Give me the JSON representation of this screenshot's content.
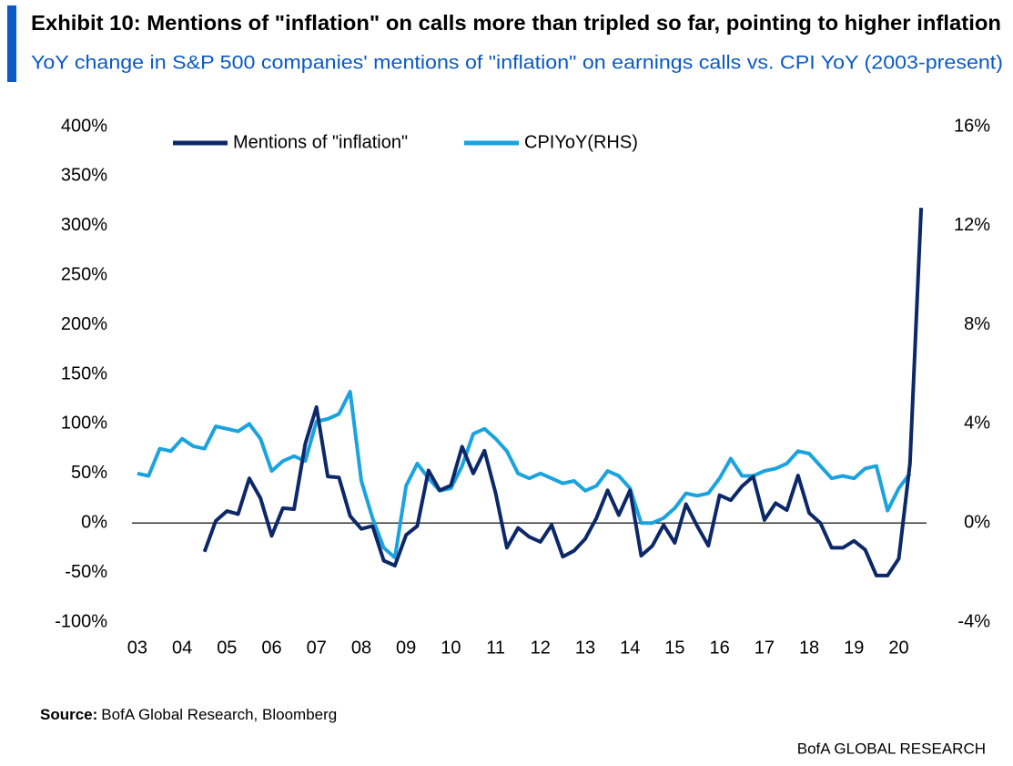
{
  "chart_data": {
    "type": "line",
    "title": "Exhibit 10: Mentions of \"inflation\" on calls more than tripled so far, pointing to higher inflation",
    "subtitle": "YoY change in S&P 500 companies' mentions of \"inflation\" on earnings calls vs. CPI YoY (2003-present)",
    "legend": "top",
    "series": [
      {
        "name": "Mentions of \"inflation\"",
        "color": "#0c2869",
        "x": [
          2004.5,
          2004.75,
          2005,
          2005.25,
          2005.5,
          2005.75,
          2006,
          2006.25,
          2006.5,
          2006.75,
          2007,
          2007.25,
          2007.5,
          2007.75,
          2008,
          2008.25,
          2008.5,
          2008.75,
          2009,
          2009.25,
          2009.5,
          2009.75,
          2010,
          2010.25,
          2010.5,
          2010.75,
          2011,
          2011.25,
          2011.5,
          2011.75,
          2012,
          2012.25,
          2012.5,
          2012.75,
          2013,
          2013.25,
          2013.5,
          2013.75,
          2014,
          2014.25,
          2014.5,
          2014.75,
          2015,
          2015.25,
          2015.5,
          2015.75,
          2016,
          2016.25,
          2016.5,
          2016.75,
          2017,
          2017.25,
          2017.5,
          2017.75,
          2018,
          2018.25,
          2018.5,
          2018.75,
          2019,
          2019.25,
          2019.5,
          2019.75,
          2020,
          2020.25,
          2020.5
        ],
        "values": [
          -29,
          2,
          12,
          9,
          45,
          25,
          -13,
          15,
          14,
          80,
          117,
          47,
          46,
          7,
          -6,
          -3,
          -38,
          -43,
          -12,
          -3,
          53,
          33,
          38,
          77,
          50,
          73,
          30,
          -25,
          -5,
          -14,
          -19,
          -2,
          -34,
          -28,
          -16,
          5,
          33,
          8,
          33,
          -33,
          -23,
          -2,
          -20,
          19,
          -3,
          -23,
          28,
          23,
          37,
          47,
          3,
          20,
          13,
          48,
          10,
          0,
          -25,
          -25,
          -18,
          -27,
          -53,
          -53,
          -36,
          60,
          318
        ]
      },
      {
        "name": "CPIYoY(RHS)",
        "color": "#1aa3df",
        "axis": "y2",
        "x": [
          2003,
          2003.25,
          2003.5,
          2003.75,
          2004,
          2004.25,
          2004.5,
          2004.75,
          2005,
          2005.25,
          2005.5,
          2005.75,
          2006,
          2006.25,
          2006.5,
          2006.75,
          2007,
          2007.25,
          2007.5,
          2007.75,
          2008,
          2008.25,
          2008.5,
          2008.75,
          2009,
          2009.25,
          2009.5,
          2009.75,
          2010,
          2010.25,
          2010.5,
          2010.75,
          2011,
          2011.25,
          2011.5,
          2011.75,
          2012,
          2012.25,
          2012.5,
          2012.75,
          2013,
          2013.25,
          2013.5,
          2013.75,
          2014,
          2014.25,
          2014.5,
          2014.75,
          2015,
          2015.25,
          2015.5,
          2015.75,
          2016,
          2016.25,
          2016.5,
          2016.75,
          2017,
          2017.25,
          2017.5,
          2017.75,
          2018,
          2018.25,
          2018.5,
          2018.75,
          2019,
          2019.25,
          2019.5,
          2019.75,
          2020,
          2020.25
        ],
        "values": [
          2.0,
          1.9,
          3.0,
          2.9,
          3.4,
          3.1,
          3.0,
          3.9,
          3.8,
          3.7,
          4.0,
          3.4,
          2.1,
          2.5,
          2.7,
          2.5,
          4.1,
          4.2,
          4.4,
          5.3,
          1.7,
          0.2,
          -1.0,
          -1.4,
          1.5,
          2.4,
          1.8,
          1.3,
          1.4,
          2.3,
          3.6,
          3.8,
          3.4,
          2.9,
          2.0,
          1.8,
          2.0,
          1.8,
          1.6,
          1.7,
          1.3,
          1.5,
          2.1,
          1.9,
          1.4,
          0.0,
          0.0,
          0.2,
          0.6,
          1.2,
          1.1,
          1.2,
          1.8,
          2.6,
          1.9,
          1.9,
          2.1,
          2.2,
          2.4,
          2.9,
          2.8,
          2.3,
          1.8,
          1.9,
          1.8,
          2.2,
          2.3,
          0.5,
          1.4,
          2.0
        ]
      }
    ],
    "xlim": [
      2002.88,
      2020.62
    ],
    "xticks": [
      {
        "value": 2003,
        "label": "03"
      },
      {
        "value": 2004,
        "label": "04"
      },
      {
        "value": 2005,
        "label": "05"
      },
      {
        "value": 2006,
        "label": "06"
      },
      {
        "value": 2007,
        "label": "07"
      },
      {
        "value": 2008,
        "label": "08"
      },
      {
        "value": 2009,
        "label": "09"
      },
      {
        "value": 2010,
        "label": "10"
      },
      {
        "value": 2011,
        "label": "11"
      },
      {
        "value": 2012,
        "label": "12"
      },
      {
        "value": 2013,
        "label": "13"
      },
      {
        "value": 2014,
        "label": "14"
      },
      {
        "value": 2015,
        "label": "15"
      },
      {
        "value": 2016,
        "label": "16"
      },
      {
        "value": 2017,
        "label": "17"
      },
      {
        "value": 2018,
        "label": "18"
      },
      {
        "value": 2019,
        "label": "19"
      },
      {
        "value": 2020,
        "label": "20"
      }
    ],
    "ylim": [
      -100,
      400
    ],
    "yticks": [
      {
        "value": -100,
        "label": "-100%"
      },
      {
        "value": -50,
        "label": "-50%"
      },
      {
        "value": 0,
        "label": "0%"
      },
      {
        "value": 50,
        "label": "50%"
      },
      {
        "value": 100,
        "label": "100%"
      },
      {
        "value": 150,
        "label": "150%"
      },
      {
        "value": 200,
        "label": "200%"
      },
      {
        "value": 250,
        "label": "250%"
      },
      {
        "value": 300,
        "label": "300%"
      },
      {
        "value": 350,
        "label": "350%"
      },
      {
        "value": 400,
        "label": "400%"
      }
    ],
    "y2lim": [
      -4,
      16
    ],
    "y2ticks": [
      {
        "value": -4,
        "label": "-4%"
      },
      {
        "value": 0,
        "label": "0%"
      },
      {
        "value": 4,
        "label": "4%"
      },
      {
        "value": 8,
        "label": "8%"
      },
      {
        "value": 12,
        "label": "12%"
      },
      {
        "value": 16,
        "label": "16%"
      }
    ],
    "grid": false
  },
  "source": {
    "label": "Source:",
    "text": "BofA Global Research, Bloomberg"
  },
  "footer": "BofA GLOBAL RESEARCH"
}
